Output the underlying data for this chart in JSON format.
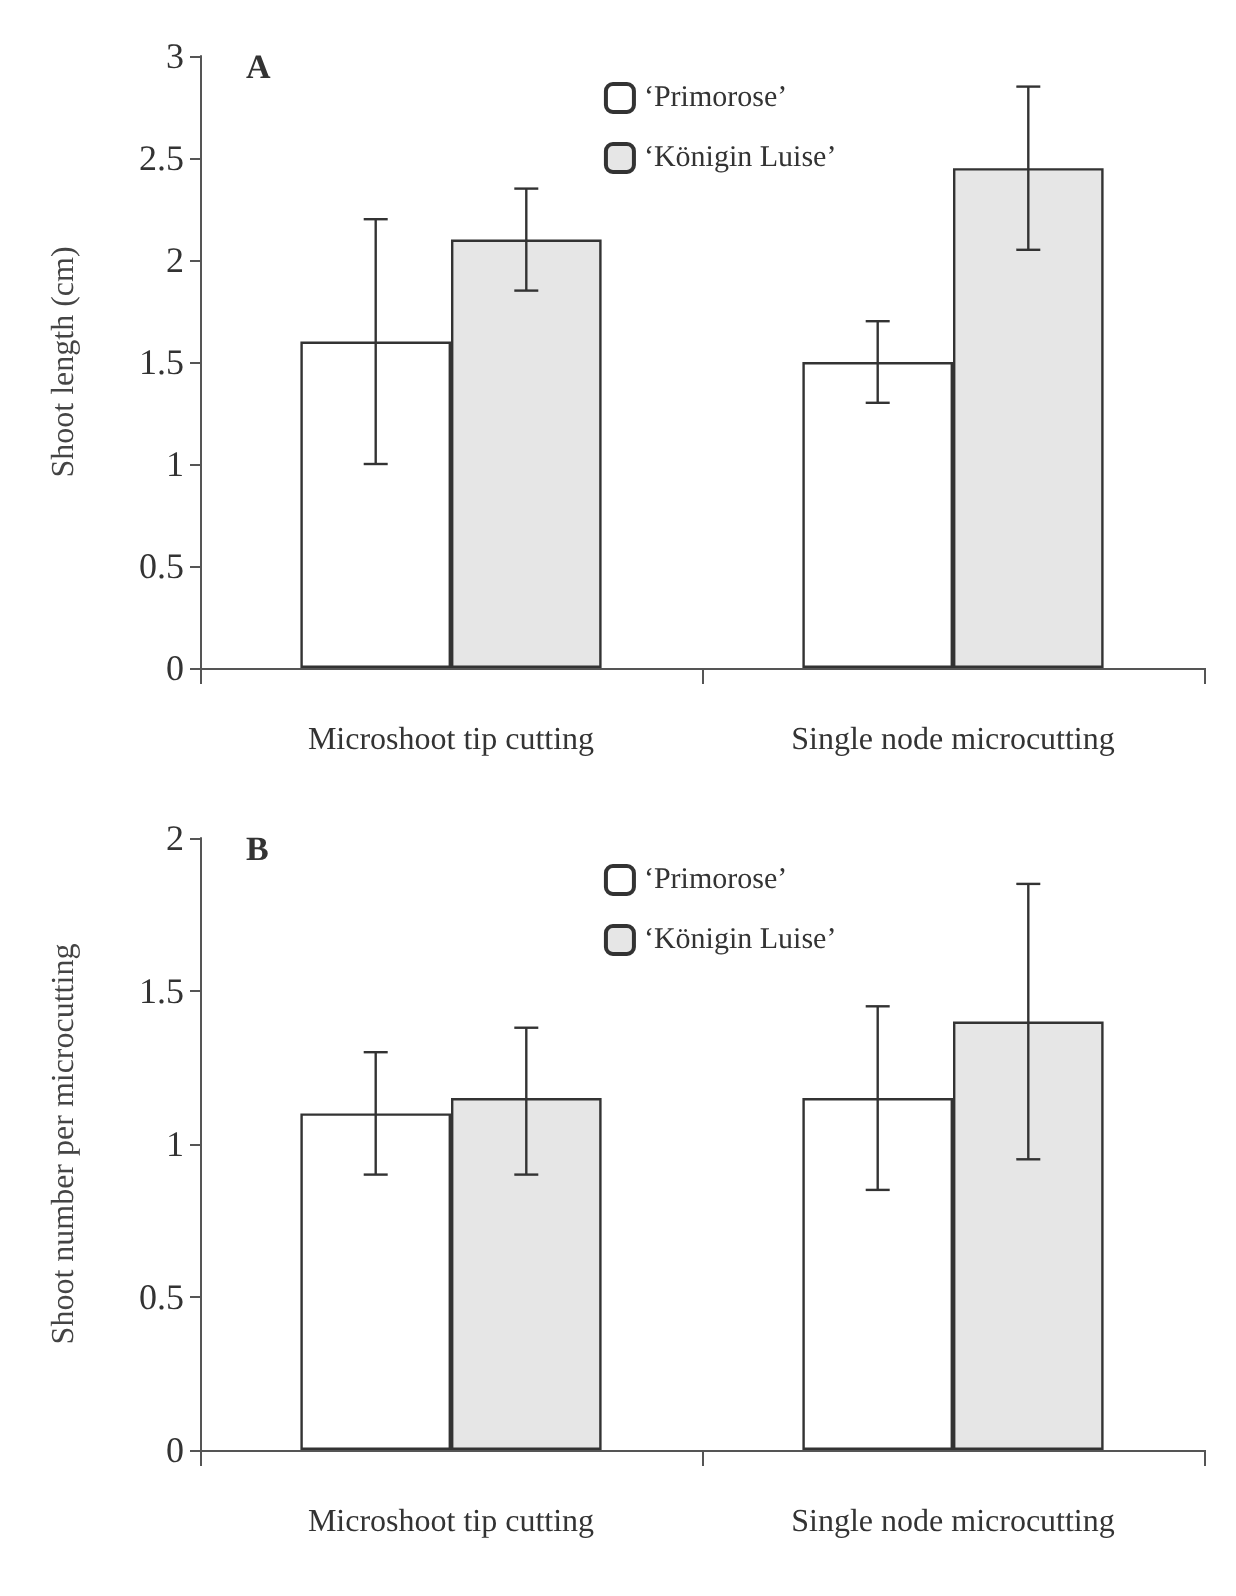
{
  "chart_data": [
    {
      "type": "bar",
      "title": "A",
      "ylabel": "Shoot length (cm)",
      "categories": [
        "Microshoot tip cutting",
        "Single node microcutting"
      ],
      "series": [
        {
          "name": "‘Primorose’",
          "color": "#ffffff",
          "values": [
            1.6,
            1.5
          ],
          "errors": [
            [
              1.0,
              2.2
            ],
            [
              1.3,
              1.7
            ]
          ]
        },
        {
          "name": "‘Königin Luise’",
          "color": "#e6e6e6",
          "values": [
            2.1,
            2.45
          ],
          "errors": [
            [
              1.85,
              2.35
            ],
            [
              2.05,
              2.85
            ]
          ]
        }
      ],
      "ylim": [
        0,
        3
      ],
      "yticks": [
        0,
        0.5,
        1,
        1.5,
        2,
        2.5,
        3
      ],
      "grid": false,
      "legend": "top"
    },
    {
      "type": "bar",
      "title": "B",
      "ylabel": "Shoot number per microcutting",
      "categories": [
        "Microshoot tip cutting",
        "Single node microcutting"
      ],
      "series": [
        {
          "name": "‘Primorose’",
          "color": "#ffffff",
          "values": [
            1.1,
            1.15
          ],
          "errors": [
            [
              0.9,
              1.3
            ],
            [
              0.85,
              1.45
            ]
          ]
        },
        {
          "name": "‘Königin Luise’",
          "color": "#e6e6e6",
          "values": [
            1.15,
            1.4
          ],
          "errors": [
            [
              0.9,
              1.38
            ],
            [
              0.95,
              1.85
            ]
          ]
        }
      ],
      "ylim": [
        0,
        2
      ],
      "yticks": [
        0,
        0.5,
        1,
        1.5,
        2
      ],
      "grid": false,
      "legend": "top"
    }
  ]
}
